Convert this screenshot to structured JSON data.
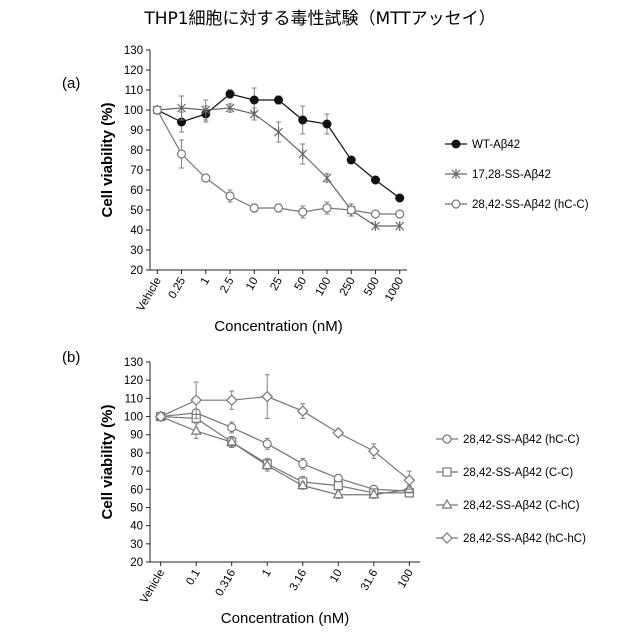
{
  "title": "THP1細胞に対する毒性試験（MTTアッセイ）",
  "chart_data": [
    {
      "panel": "(a)",
      "type": "line",
      "ylabel": "Cell viability (%)",
      "xlabel": "Concentration (nM)",
      "ylim": [
        20,
        130
      ],
      "yticks": [
        20,
        30,
        40,
        50,
        60,
        70,
        80,
        90,
        100,
        110,
        120,
        130
      ],
      "categories": [
        "Vehicle",
        "0.25",
        "1",
        "2.5",
        "10",
        "25",
        "50",
        "100",
        "250",
        "500",
        "1000"
      ],
      "grid": false,
      "legend_position": "right",
      "series": [
        {
          "name": "WT-Aβ42",
          "marker": "filled-circle",
          "color": "#111111",
          "start": 0,
          "values": [
            100,
            94,
            98,
            108,
            105,
            105,
            95,
            93,
            75,
            65,
            56
          ],
          "errors": [
            0,
            5,
            4,
            2,
            6,
            2,
            7,
            5,
            0,
            0,
            0
          ]
        },
        {
          "name": "17,28-SS-Aβ42",
          "marker": "asterisk",
          "color": "#666666",
          "start": 0,
          "values": [
            100,
            101,
            100,
            101,
            98,
            89,
            78,
            66,
            50,
            42,
            42
          ],
          "errors": [
            0,
            6,
            5,
            2,
            3,
            5,
            5,
            2,
            3,
            0,
            0
          ]
        },
        {
          "name": "28,42-SS-Aβ42 (hC-C)",
          "marker": "open-circle",
          "color": "#777777",
          "start": 0,
          "values": [
            100,
            78,
            66,
            57,
            51,
            51,
            49,
            51,
            50,
            48,
            48
          ],
          "errors": [
            0,
            7,
            0,
            3,
            2,
            2,
            3,
            3,
            3,
            0,
            0
          ]
        }
      ]
    },
    {
      "panel": "(b)",
      "type": "line",
      "ylabel": "Cell viability (%)",
      "xlabel": "Concentration (nM)",
      "ylim": [
        20,
        130
      ],
      "yticks": [
        20,
        30,
        40,
        50,
        60,
        70,
        80,
        90,
        100,
        110,
        120,
        130
      ],
      "categories": [
        "Vehicle",
        "0.1",
        "0.316",
        "1",
        "3.16",
        "10",
        "31.6",
        "100"
      ],
      "grid": false,
      "legend_position": "right",
      "series": [
        {
          "name": "28,42-SS-Aβ42 (hC-C)",
          "marker": "open-circle",
          "color": "#777777",
          "start": 0,
          "values": [
            100,
            102,
            94,
            85,
            74,
            66,
            60,
            59
          ],
          "errors": [
            0,
            2,
            3,
            3,
            3,
            2,
            2,
            2
          ]
        },
        {
          "name": "28,42-SS-Aβ42 (C-C)",
          "marker": "open-square",
          "color": "#777777",
          "start": 0,
          "values": [
            100,
            99,
            86,
            74,
            64,
            62,
            58,
            58
          ],
          "errors": [
            0,
            2,
            3,
            3,
            3,
            2,
            2,
            2
          ]
        },
        {
          "name": "28,42-SS-Aβ42 (C-hC)",
          "marker": "open-triangle",
          "color": "#777777",
          "start": 0,
          "values": [
            100,
            92,
            86,
            73,
            62,
            57,
            57,
            60
          ],
          "errors": [
            0,
            4,
            3,
            3,
            2,
            2,
            2,
            2
          ]
        },
        {
          "name": "28,42-SS-Aβ42 (hC-hC)",
          "marker": "open-diamond",
          "color": "#777777",
          "start": 0,
          "values": [
            100,
            109,
            109,
            111,
            103,
            91,
            81,
            65
          ],
          "errors": [
            0,
            10,
            5,
            12,
            4,
            2,
            4,
            5
          ]
        }
      ]
    }
  ]
}
